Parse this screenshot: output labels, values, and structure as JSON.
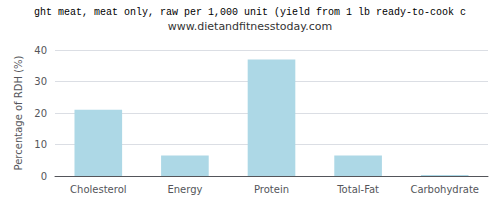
{
  "chart_data": {
    "type": "bar",
    "title": "ght meat, meat only, raw per 1,000 unit (yield from 1 lb ready-to-cook c",
    "subtitle": "www.dietandfitnesstoday.com",
    "categories": [
      "Cholesterol",
      "Energy",
      "Protein",
      "Total-Fat",
      "Carbohydrate"
    ],
    "values": [
      21.0,
      6.5,
      37.0,
      6.5,
      0.3
    ],
    "color": "#add8e6",
    "ylabel": "Percentage of RDH (%)",
    "ylim": [
      0,
      40
    ],
    "yticks": [
      0,
      10,
      20,
      30,
      40
    ],
    "grid": true
  }
}
